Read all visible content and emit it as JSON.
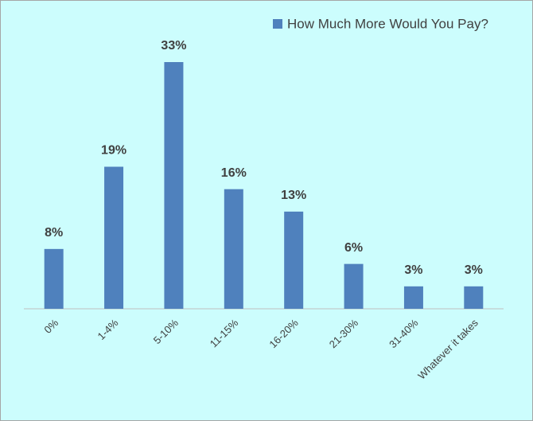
{
  "chart_data": {
    "type": "bar",
    "categories": [
      "0%",
      "1-4%",
      "5-10%",
      "11-15%",
      "16-20%",
      "21-30%",
      "31-40%",
      "Whatever it takes"
    ],
    "series": [
      {
        "name": "How Much More Would You Pay?",
        "color": "#4f81bd",
        "values": [
          8,
          19,
          33,
          16,
          13,
          6,
          3,
          3
        ],
        "value_labels": [
          "8%",
          "19%",
          "33%",
          "16%",
          "13%",
          "6%",
          "3%",
          "3%"
        ]
      }
    ],
    "legend": "top-right"
  }
}
